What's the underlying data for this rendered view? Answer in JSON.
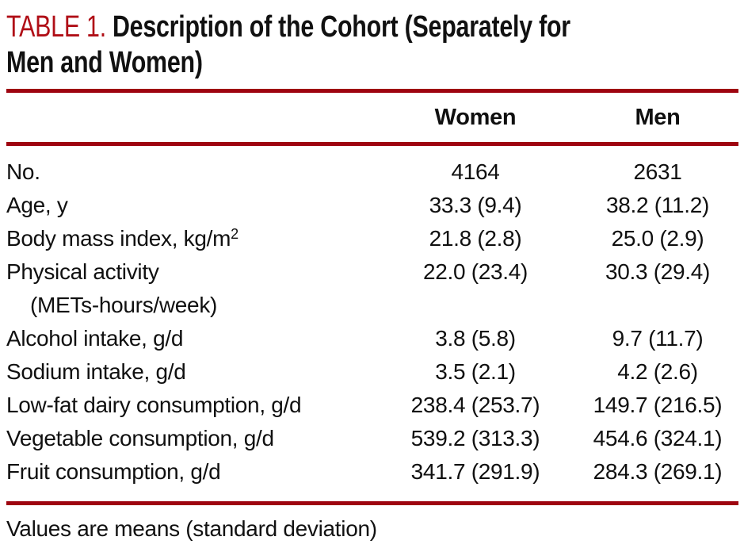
{
  "title": {
    "label": "TABLE 1.",
    "line1": "Description of the Cohort (Separately for",
    "line2": "Men and Women)"
  },
  "columns": {
    "label": "",
    "women": "Women",
    "men": "Men"
  },
  "rows": [
    {
      "label": "No.",
      "women": "4164",
      "men": "2631"
    },
    {
      "label": "Age, y",
      "women": "33.3 (9.4)",
      "men": "38.2 (11.2)"
    },
    {
      "label": "Body mass index, kg/m",
      "superscript": "2",
      "women": "21.8 (2.8)",
      "men": "25.0 (2.9)"
    },
    {
      "label": "Physical activity",
      "label_cont": "(METs-hours/week)",
      "women": "22.0 (23.4)",
      "men": "30.3 (29.4)"
    },
    {
      "label": "Alcohol intake, g/d",
      "women": "3.8 (5.8)",
      "men": "9.7 (11.7)"
    },
    {
      "label": "Sodium intake, g/d",
      "women": "3.5 (2.1)",
      "men": "4.2 (2.6)"
    },
    {
      "label": "Low-fat dairy consumption, g/d",
      "women": "238.4 (253.7)",
      "men": "149.7 (216.5)"
    },
    {
      "label": "Vegetable consumption, g/d",
      "women": "539.2 (313.3)",
      "men": "454.6 (324.1)"
    },
    {
      "label": "Fruit consumption, g/d",
      "women": "341.7 (291.9)",
      "men": "284.3 (269.1)"
    }
  ],
  "footnote": "Values are means (standard deviation)",
  "colors": {
    "accent_red": "#b00f17",
    "rule_red": "#9e0410",
    "text": "#111111",
    "background": "#ffffff"
  }
}
